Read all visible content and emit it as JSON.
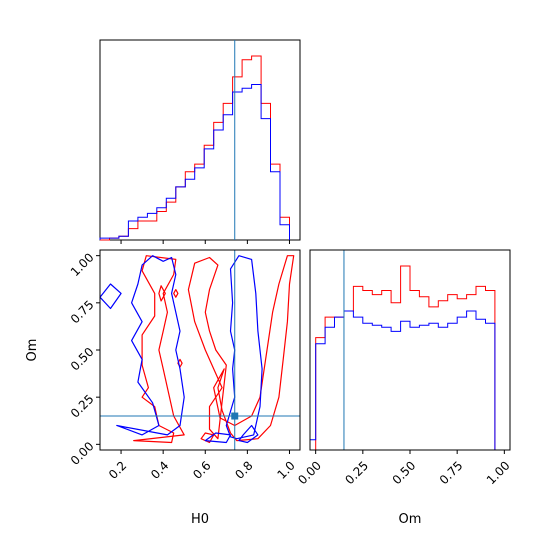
{
  "colors": {
    "red": "#ff0000",
    "blue": "#0000ff",
    "truth": "#1f77b4"
  },
  "chart_data": {
    "type": "corner",
    "parameters": [
      "H0",
      "Om"
    ],
    "xlabels": {
      "H0": "H0",
      "Om": "Om"
    },
    "ylabels": {
      "Om": "Om"
    },
    "truth": {
      "H0": 0.74,
      "Om": 0.15
    },
    "ranges": {
      "H0": [
        0.1,
        1.05
      ],
      "Om": [
        -0.03,
        1.03
      ]
    },
    "ticks": {
      "H0": [
        "0.2",
        "0.4",
        "0.6",
        "0.8",
        "1.0"
      ],
      "Om_x": [
        "0.00",
        "0.25",
        "0.50",
        "0.75",
        "1.00"
      ],
      "Om_y": [
        "0.00",
        "0.25",
        "0.50",
        "0.75",
        "1.00"
      ]
    },
    "hist_H0": {
      "edges": [
        0.1,
        0.145,
        0.19,
        0.235,
        0.28,
        0.325,
        0.37,
        0.415,
        0.46,
        0.505,
        0.55,
        0.595,
        0.64,
        0.685,
        0.73,
        0.775,
        0.82,
        0.865,
        0.91,
        0.955,
        1.0
      ],
      "series": [
        {
          "color": "red",
          "values": [
            0,
            1,
            2,
            6,
            10,
            10,
            15,
            20,
            28,
            36,
            40,
            50,
            62,
            72,
            86,
            95,
            97,
            72,
            40,
            12
          ]
        },
        {
          "color": "blue",
          "values": [
            1,
            1,
            2,
            10,
            12,
            14,
            17,
            22,
            28,
            32,
            38,
            48,
            58,
            66,
            78,
            80,
            82,
            64,
            36,
            8
          ]
        }
      ]
    },
    "hist_Om": {
      "edges": [
        -0.03,
        0.0,
        0.05,
        0.1,
        0.15,
        0.2,
        0.25,
        0.3,
        0.35,
        0.4,
        0.45,
        0.5,
        0.55,
        0.6,
        0.65,
        0.7,
        0.75,
        0.8,
        0.85,
        0.9,
        0.95,
        1.0
      ],
      "series": [
        {
          "color": "red",
          "values": [
            0,
            55,
            65,
            65,
            68,
            80,
            78,
            76,
            78,
            72,
            90,
            78,
            75,
            70,
            73,
            76,
            74,
            76,
            80,
            78,
            0
          ]
        },
        {
          "color": "blue",
          "values": [
            5,
            52,
            60,
            65,
            68,
            65,
            62,
            61,
            60,
            58,
            63,
            60,
            61,
            62,
            60,
            62,
            65,
            68,
            64,
            62,
            0
          ]
        }
      ]
    },
    "contours": [
      {
        "color": "red",
        "points": [
          [
            0.75,
            0.02
          ],
          [
            0.85,
            0.03
          ],
          [
            0.91,
            0.1
          ],
          [
            0.95,
            0.25
          ],
          [
            0.97,
            0.45
          ],
          [
            0.99,
            0.65
          ],
          [
            1.0,
            0.85
          ],
          [
            1.02,
            1.0
          ],
          [
            0.99,
            1.0
          ],
          [
            0.95,
            0.85
          ],
          [
            0.92,
            0.7
          ],
          [
            0.9,
            0.55
          ],
          [
            0.88,
            0.4
          ],
          [
            0.86,
            0.25
          ],
          [
            0.82,
            0.15
          ],
          [
            0.74,
            0.1
          ],
          [
            0.67,
            0.14
          ],
          [
            0.64,
            0.3
          ],
          [
            0.69,
            0.4
          ],
          [
            0.66,
            0.3
          ],
          [
            0.68,
            0.18
          ],
          [
            0.72,
            0.06
          ]
        ]
      },
      {
        "color": "red",
        "points": [
          [
            0.66,
            0.03
          ],
          [
            0.62,
            0.08
          ],
          [
            0.62,
            0.2
          ],
          [
            0.68,
            0.3
          ],
          [
            0.64,
            0.4
          ],
          [
            0.6,
            0.5
          ],
          [
            0.55,
            0.65
          ],
          [
            0.52,
            0.82
          ],
          [
            0.55,
            0.96
          ],
          [
            0.62,
            0.99
          ],
          [
            0.66,
            0.95
          ],
          [
            0.62,
            0.82
          ],
          [
            0.6,
            0.7
          ],
          [
            0.62,
            0.6
          ],
          [
            0.65,
            0.5
          ],
          [
            0.7,
            0.42
          ]
        ]
      },
      {
        "color": "red",
        "points": [
          [
            0.26,
            0.02
          ],
          [
            0.44,
            0.01
          ],
          [
            0.45,
            0.06
          ],
          [
            0.38,
            0.1
          ],
          [
            0.36,
            0.2
          ],
          [
            0.3,
            0.25
          ],
          [
            0.33,
            0.3
          ],
          [
            0.3,
            0.42
          ],
          [
            0.3,
            0.58
          ],
          [
            0.36,
            0.68
          ],
          [
            0.36,
            0.8
          ],
          [
            0.3,
            0.92
          ],
          [
            0.32,
            1.0
          ],
          [
            0.46,
            0.98
          ],
          [
            0.45,
            0.9
          ],
          [
            0.4,
            0.8
          ],
          [
            0.42,
            0.7
          ],
          [
            0.4,
            0.6
          ],
          [
            0.38,
            0.5
          ],
          [
            0.4,
            0.4
          ],
          [
            0.42,
            0.3
          ],
          [
            0.45,
            0.15
          ],
          [
            0.5,
            0.05
          ]
        ]
      },
      {
        "color": "red",
        "points": [
          [
            0.38,
            0.8
          ],
          [
            0.39,
            0.76
          ],
          [
            0.41,
            0.8
          ],
          [
            0.39,
            0.84
          ],
          [
            0.38,
            0.8
          ]
        ]
      },
      {
        "color": "red",
        "points": [
          [
            0.45,
            0.8
          ],
          [
            0.46,
            0.78
          ],
          [
            0.47,
            0.8
          ],
          [
            0.46,
            0.82
          ],
          [
            0.45,
            0.8
          ]
        ]
      },
      {
        "color": "red",
        "points": [
          [
            0.47,
            0.43
          ],
          [
            0.48,
            0.41
          ],
          [
            0.49,
            0.43
          ],
          [
            0.48,
            0.45
          ],
          [
            0.47,
            0.43
          ]
        ]
      },
      {
        "color": "red",
        "points": [
          [
            0.58,
            0.03
          ],
          [
            0.62,
            0.01
          ],
          [
            0.64,
            0.05
          ],
          [
            0.6,
            0.06
          ],
          [
            0.58,
            0.03
          ]
        ]
      },
      {
        "color": "blue",
        "points": [
          [
            0.75,
            0.03
          ],
          [
            0.83,
            0.05
          ],
          [
            0.86,
            0.2
          ],
          [
            0.87,
            0.4
          ],
          [
            0.85,
            0.6
          ],
          [
            0.84,
            0.8
          ],
          [
            0.82,
            0.98
          ],
          [
            0.76,
            1.0
          ],
          [
            0.72,
            0.93
          ],
          [
            0.73,
            0.75
          ],
          [
            0.72,
            0.6
          ],
          [
            0.74,
            0.5
          ],
          [
            0.73,
            0.4
          ],
          [
            0.74,
            0.25
          ],
          [
            0.7,
            0.1
          ],
          [
            0.72,
            0.04
          ],
          [
            0.75,
            0.03
          ]
        ]
      },
      {
        "color": "blue",
        "points": [
          [
            0.76,
            0.02
          ],
          [
            0.78,
            0.05
          ],
          [
            0.82,
            0.1
          ],
          [
            0.85,
            0.05
          ],
          [
            0.8,
            0.01
          ],
          [
            0.76,
            0.02
          ]
        ]
      },
      {
        "color": "blue",
        "points": [
          [
            0.18,
            0.1
          ],
          [
            0.3,
            0.05
          ],
          [
            0.38,
            0.1
          ],
          [
            0.35,
            0.22
          ],
          [
            0.28,
            0.33
          ],
          [
            0.3,
            0.45
          ],
          [
            0.25,
            0.55
          ],
          [
            0.3,
            0.65
          ],
          [
            0.25,
            0.75
          ],
          [
            0.28,
            0.85
          ],
          [
            0.3,
            0.95
          ],
          [
            0.35,
            1.0
          ],
          [
            0.4,
            0.97
          ],
          [
            0.44,
            0.99
          ],
          [
            0.46,
            0.9
          ],
          [
            0.44,
            0.8
          ],
          [
            0.46,
            0.7
          ],
          [
            0.48,
            0.6
          ],
          [
            0.46,
            0.5
          ],
          [
            0.48,
            0.4
          ],
          [
            0.5,
            0.25
          ],
          [
            0.48,
            0.1
          ],
          [
            0.42,
            0.05
          ]
        ]
      },
      {
        "color": "blue",
        "points": [
          [
            0.1,
            0.78
          ],
          [
            0.15,
            0.72
          ],
          [
            0.2,
            0.8
          ],
          [
            0.15,
            0.85
          ],
          [
            0.1,
            0.78
          ]
        ]
      },
      {
        "color": "blue",
        "points": [
          [
            0.6,
            0.02
          ],
          [
            0.7,
            0.01
          ],
          [
            0.72,
            0.05
          ],
          [
            0.65,
            0.06
          ],
          [
            0.6,
            0.02
          ]
        ]
      }
    ]
  }
}
